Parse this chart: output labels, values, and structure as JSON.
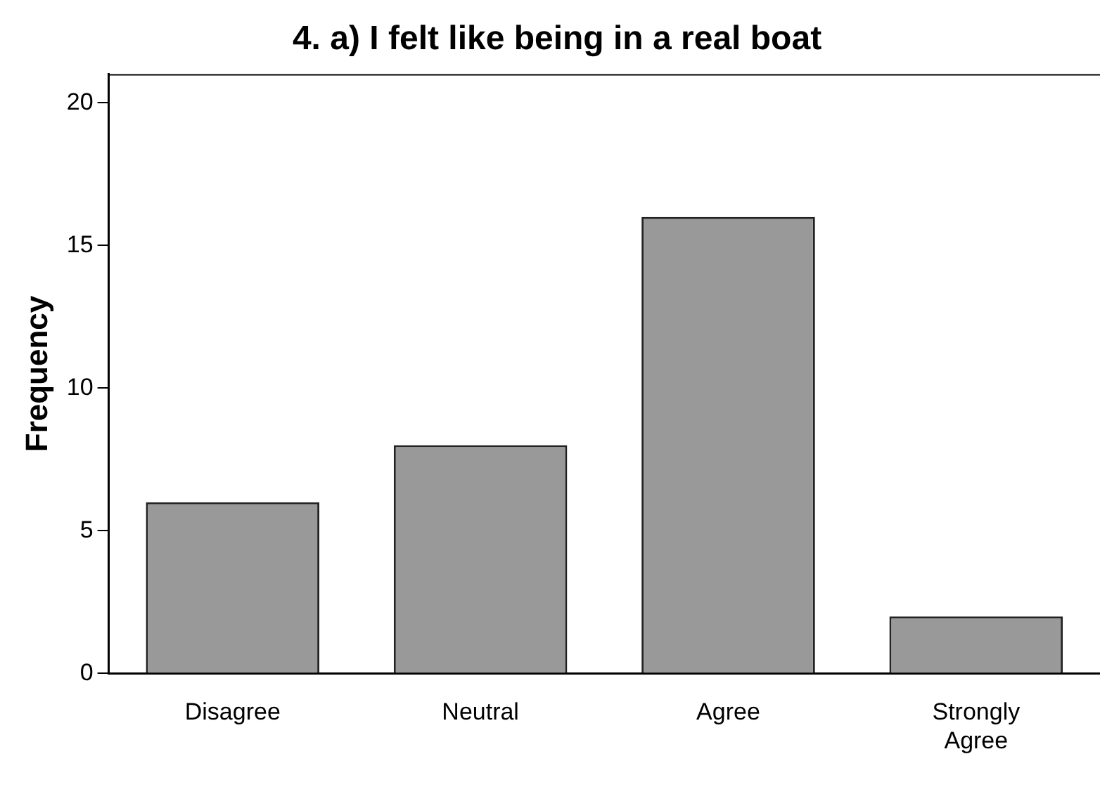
{
  "chart_data": {
    "type": "bar",
    "title": "4. a) I felt like being in a real boat",
    "ylabel": "Frequency",
    "categories": [
      "Disagree",
      "Neutral",
      "Agree",
      "Strongly Agree"
    ],
    "values": [
      6,
      8,
      16,
      2
    ],
    "color": "#999999",
    "ylim": [
      0,
      21
    ],
    "yticks": [
      0,
      5,
      10,
      15,
      20
    ],
    "grid": false,
    "legend": false
  }
}
